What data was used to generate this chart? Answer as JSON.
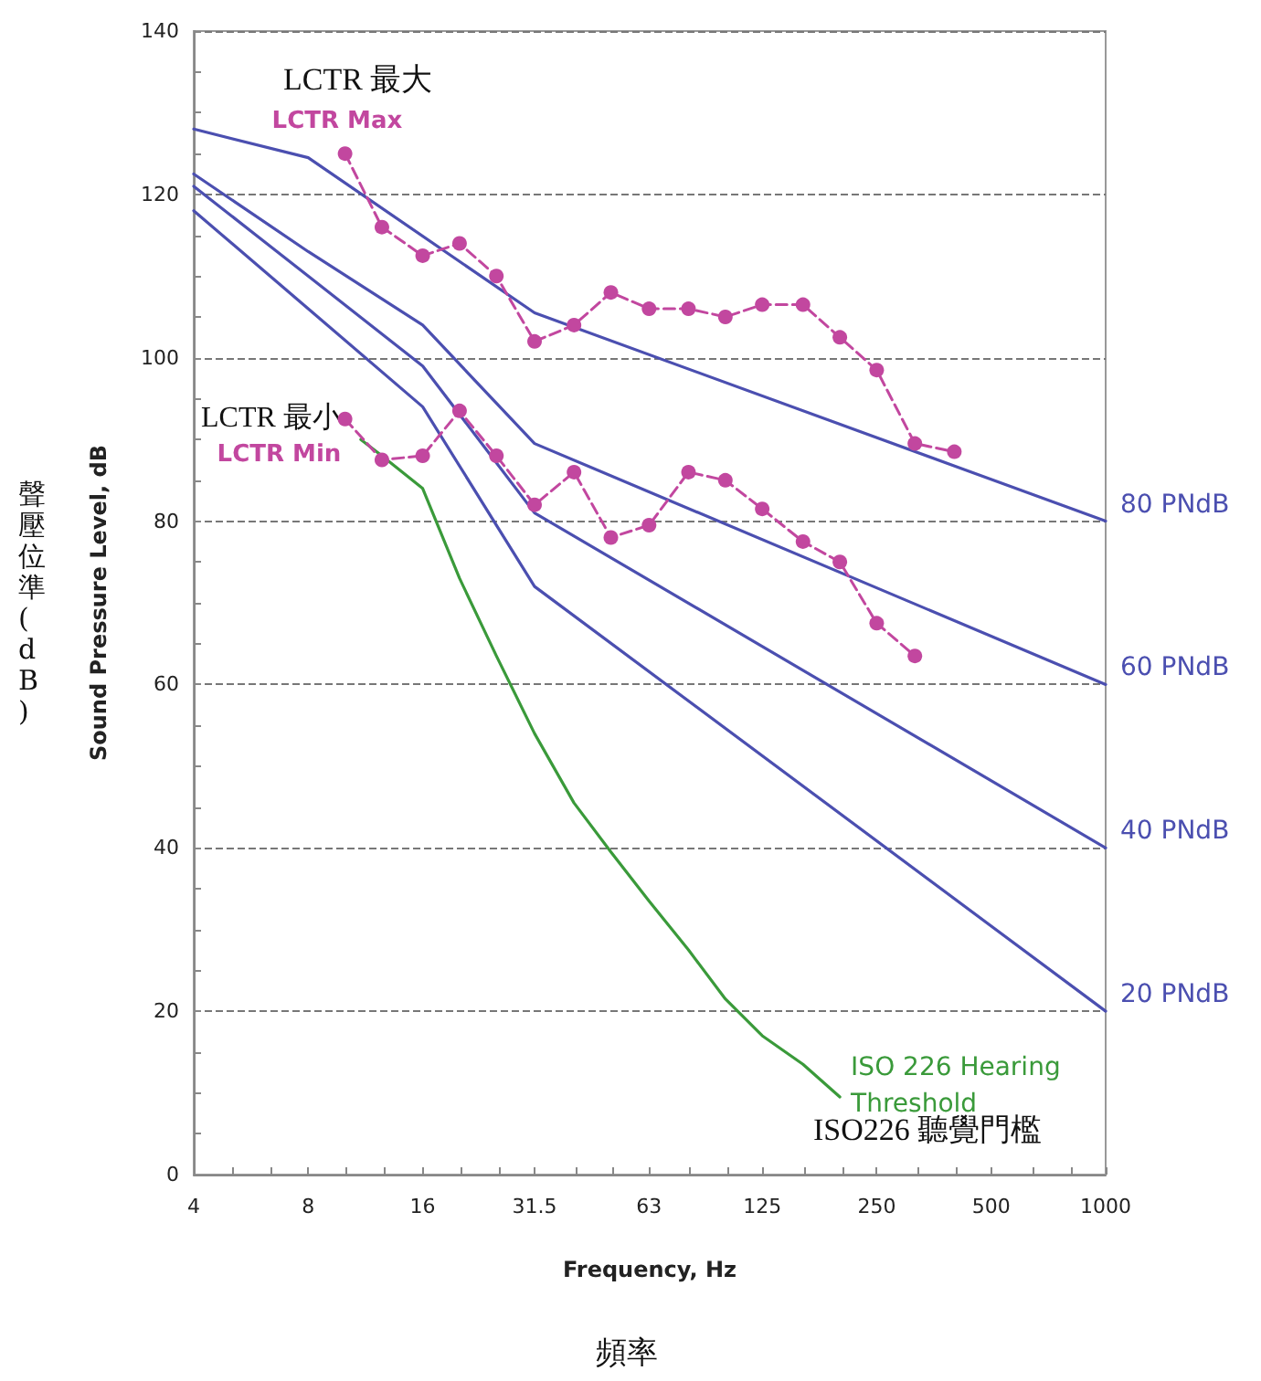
{
  "chart_data": {
    "type": "line",
    "xlabel": "Frequency, Hz",
    "ylabel": "Sound Pressure Level, dB",
    "log": "x",
    "xlim": [
      4,
      1000
    ],
    "xticks": [
      4,
      8,
      16,
      {
        "value": 31.5,
        "label": "31.5"
      },
      63,
      125,
      250,
      500,
      1000
    ],
    "ylim": [
      0,
      140
    ],
    "yticks": [
      0,
      20,
      40,
      60,
      80,
      100,
      120,
      140
    ],
    "grid": "y",
    "legend": false,
    "series": [
      {
        "name": "80 PNdB",
        "color": "#4b4fb0",
        "marker": "none",
        "line_style": "solid",
        "x": [
          4,
          8,
          31.5,
          1000
        ],
        "values": [
          128,
          124.5,
          105.5,
          80
        ]
      },
      {
        "name": "60 PNdB",
        "color": "#4b4fb0",
        "marker": "none",
        "line_style": "solid",
        "x": [
          4,
          8,
          16,
          31.5,
          1000
        ],
        "values": [
          122.5,
          113,
          104,
          89.5,
          60
        ]
      },
      {
        "name": "40 PNdB",
        "color": "#4b4fb0",
        "marker": "none",
        "line_style": "solid",
        "x": [
          4,
          8,
          16,
          31.5,
          1000
        ],
        "values": [
          121,
          110,
          99,
          81,
          40
        ]
      },
      {
        "name": "20 PNdB",
        "color": "#4b4fb0",
        "marker": "none",
        "line_style": "solid",
        "x": [
          4,
          8,
          16,
          31.5,
          1000
        ],
        "values": [
          118,
          106,
          94,
          72,
          20
        ]
      },
      {
        "name": "ISO 226 Hearing Threshold",
        "color": "#3a9a3a",
        "marker": "none",
        "line_style": "solid",
        "x": [
          11,
          12.5,
          16,
          20,
          25,
          31.5,
          40,
          50,
          63,
          80,
          100,
          125,
          160,
          200
        ],
        "values": [
          90,
          88,
          84,
          73,
          63.5,
          54,
          45.5,
          39.5,
          33.5,
          27.5,
          21.5,
          17,
          13.5,
          9.5
        ]
      },
      {
        "name": "LCTR Max",
        "color": "#c2479f",
        "marker": "circle",
        "line_style": "dashed",
        "x": [
          10,
          12.5,
          16,
          20,
          25,
          31.5,
          40,
          50,
          63,
          80,
          100,
          125,
          160,
          200,
          250,
          315,
          400
        ],
        "values": [
          125,
          116,
          112.5,
          114,
          110,
          102,
          104,
          108,
          106,
          106,
          105,
          106.5,
          106.5,
          102.5,
          98.5,
          89.5,
          88.5
        ]
      },
      {
        "name": "LCTR Min",
        "color": "#c2479f",
        "marker": "circle",
        "line_style": "dashed",
        "x": [
          10,
          12.5,
          16,
          20,
          25,
          31.5,
          40,
          50,
          63,
          80,
          100,
          125,
          160,
          200,
          250,
          315
        ],
        "values": [
          92.5,
          87.5,
          88,
          93.5,
          88,
          82,
          86,
          78,
          79.5,
          86,
          85,
          81.5,
          77.5,
          75,
          67.5,
          63.5
        ]
      }
    ],
    "annotations": [
      "LCTR 最大",
      "LCTR 最小",
      "ISO226 聽覺門檻",
      "聲壓位準(dB)",
      "頻率"
    ]
  }
}
